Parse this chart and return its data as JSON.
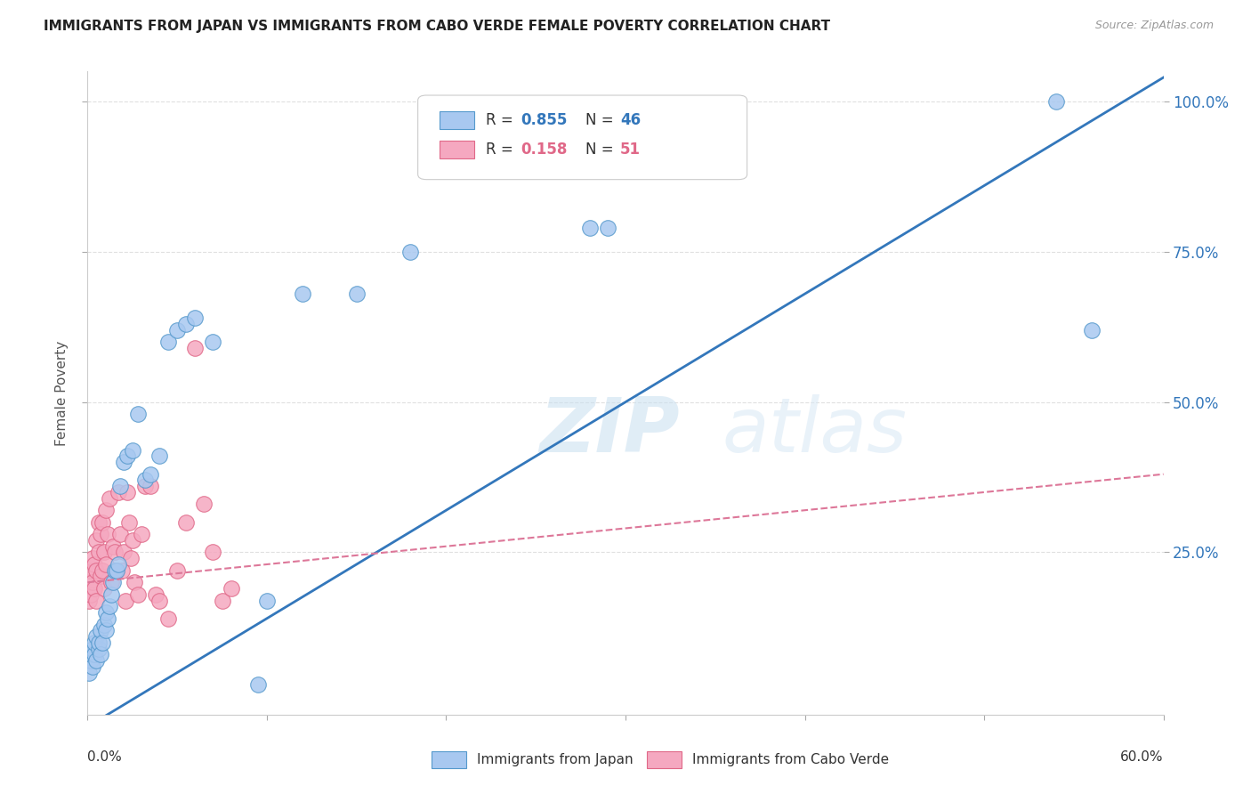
{
  "title": "IMMIGRANTS FROM JAPAN VS IMMIGRANTS FROM CABO VERDE FEMALE POVERTY CORRELATION CHART",
  "source": "Source: ZipAtlas.com",
  "ylabel": "Female Poverty",
  "yaxis_labels": [
    "100.0%",
    "75.0%",
    "50.0%",
    "25.0%"
  ],
  "yaxis_values": [
    1.0,
    0.75,
    0.5,
    0.25
  ],
  "watermark": "ZIPatlas",
  "japan_color": "#a8c8f0",
  "japan_edge_color": "#5599cc",
  "cabo_color": "#f5a8c0",
  "cabo_edge_color": "#e06888",
  "japan_R": 0.855,
  "japan_N": 46,
  "cabo_R": 0.158,
  "cabo_N": 51,
  "japan_line_color": "#3377bb",
  "cabo_line_color": "#dd7799",
  "legend_japan_label": "Immigrants from Japan",
  "legend_cabo_label": "Immigrants from Cabo Verde",
  "japan_scatter_x": [
    0.001,
    0.002,
    0.002,
    0.003,
    0.003,
    0.004,
    0.004,
    0.005,
    0.005,
    0.006,
    0.006,
    0.007,
    0.007,
    0.008,
    0.009,
    0.01,
    0.01,
    0.011,
    0.012,
    0.013,
    0.014,
    0.015,
    0.016,
    0.017,
    0.018,
    0.02,
    0.022,
    0.025,
    0.028,
    0.032,
    0.035,
    0.04,
    0.045,
    0.05,
    0.055,
    0.06,
    0.07,
    0.095,
    0.1,
    0.12,
    0.15,
    0.18,
    0.28,
    0.29,
    0.54,
    0.56
  ],
  "japan_scatter_y": [
    0.05,
    0.07,
    0.08,
    0.06,
    0.09,
    0.08,
    0.1,
    0.07,
    0.11,
    0.09,
    0.1,
    0.12,
    0.08,
    0.1,
    0.13,
    0.12,
    0.15,
    0.14,
    0.16,
    0.18,
    0.2,
    0.22,
    0.22,
    0.23,
    0.36,
    0.4,
    0.41,
    0.42,
    0.48,
    0.37,
    0.38,
    0.41,
    0.6,
    0.62,
    0.63,
    0.64,
    0.6,
    0.03,
    0.17,
    0.68,
    0.68,
    0.75,
    0.79,
    0.79,
    1.0,
    0.62
  ],
  "cabo_scatter_x": [
    0.001,
    0.001,
    0.002,
    0.002,
    0.003,
    0.003,
    0.004,
    0.004,
    0.005,
    0.005,
    0.005,
    0.006,
    0.006,
    0.007,
    0.007,
    0.008,
    0.008,
    0.009,
    0.009,
    0.01,
    0.01,
    0.011,
    0.012,
    0.013,
    0.014,
    0.015,
    0.016,
    0.017,
    0.018,
    0.019,
    0.02,
    0.021,
    0.022,
    0.023,
    0.024,
    0.025,
    0.026,
    0.028,
    0.03,
    0.032,
    0.035,
    0.038,
    0.04,
    0.045,
    0.05,
    0.055,
    0.06,
    0.065,
    0.07,
    0.075,
    0.08
  ],
  "cabo_scatter_y": [
    0.17,
    0.2,
    0.18,
    0.22,
    0.2,
    0.24,
    0.19,
    0.23,
    0.17,
    0.22,
    0.27,
    0.25,
    0.3,
    0.21,
    0.28,
    0.22,
    0.3,
    0.19,
    0.25,
    0.23,
    0.32,
    0.28,
    0.34,
    0.2,
    0.26,
    0.25,
    0.22,
    0.35,
    0.28,
    0.22,
    0.25,
    0.17,
    0.35,
    0.3,
    0.24,
    0.27,
    0.2,
    0.18,
    0.28,
    0.36,
    0.36,
    0.18,
    0.17,
    0.14,
    0.22,
    0.3,
    0.59,
    0.33,
    0.25,
    0.17,
    0.19
  ],
  "japan_line_x": [
    0.0,
    0.6
  ],
  "japan_line_y": [
    -0.04,
    1.04
  ],
  "cabo_line_x": [
    0.0,
    0.6
  ],
  "cabo_line_y": [
    0.2,
    0.38
  ],
  "xlim": [
    0.0,
    0.6
  ],
  "ylim": [
    -0.02,
    1.05
  ],
  "background_color": "#ffffff",
  "grid_color": "#e0e0e0"
}
